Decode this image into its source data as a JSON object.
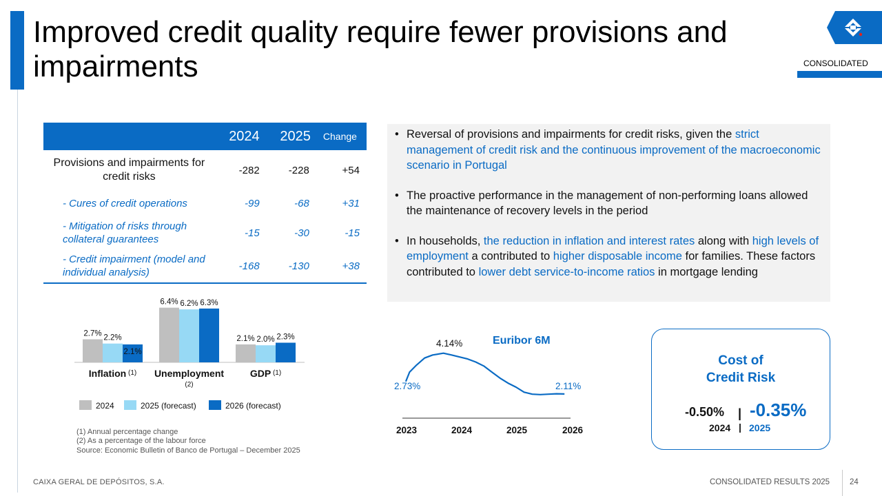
{
  "header": {
    "title": "Improved credit quality require fewer provisions and impairments",
    "consolidated_label": "CONSOLIDATED",
    "logo_icon": "cgd-logo-icon"
  },
  "table": {
    "headers": [
      "",
      "2024",
      "2025",
      "Change"
    ],
    "rows": [
      {
        "label": "Provisions and impairments for credit risks",
        "v2024": "-282",
        "v2025": "-228",
        "change": "+54"
      },
      {
        "label": "- Cures of credit operations",
        "v2024": "-99",
        "v2025": "-68",
        "change": "+31"
      },
      {
        "label": "- Mitigation of risks through collateral guarantees",
        "v2024": "-15",
        "v2025": "-30",
        "change": "-15"
      },
      {
        "label": "- Credit impairment (model and individual analysis)",
        "v2024": "-168",
        "v2025": "-130",
        "change": "+38"
      }
    ]
  },
  "bullets": {
    "b1": {
      "t1": "Reversal of provisions and impairments for credit risks, given the ",
      "h1": "strict management of credit risk and the continuous improvement of the macroeconomic scenario in Portugal"
    },
    "b2": {
      "t1": "The proactive performance in the management of non-performing loans allowed the maintenance of recovery levels in the period"
    },
    "b3": {
      "t1": "In households, ",
      "h1": "the reduction in inflation and interest rates",
      "t2": " along with ",
      "h2": "high levels of employment",
      "t3": " a contributed to ",
      "h3": "higher disposable income",
      "t4": " for families. These factors contributed to ",
      "h4": "lower debt service-to-income ratios",
      "t5": " in mortgage lending"
    }
  },
  "chart_data": [
    {
      "type": "bar",
      "categories": [
        "Inflation",
        "Unemployment",
        "GDP"
      ],
      "category_notes": [
        "(1)",
        "(2)",
        "(1)"
      ],
      "series": [
        {
          "name": "2024",
          "values": [
            2.7,
            6.4,
            2.1
          ],
          "labels": [
            "2.7%",
            "6.4%",
            "2.1%"
          ],
          "color": "#bfbfbf"
        },
        {
          "name": "2025 (forecast)",
          "values": [
            2.2,
            6.2,
            2.0
          ],
          "labels": [
            "2.2%",
            "6.2%",
            "2.0%"
          ],
          "color": "#97d9f5"
        },
        {
          "name": "2026 (forecast)",
          "values": [
            2.1,
            6.3,
            2.3
          ],
          "labels": [
            "2.1%",
            "6.3%",
            "2.3%"
          ],
          "color": "#0a6bc4"
        }
      ],
      "footnotes": [
        "(1) Annual percentage change",
        "(2) As a percentage of the labour force",
        "Source: Economic Bulletin of Banco de Portugal – December 2025"
      ]
    },
    {
      "type": "line",
      "title": "Euribor 6M",
      "x_ticks": [
        "2023",
        "2024",
        "2025",
        "2026"
      ],
      "xlim": [
        2023.0,
        2026.1
      ],
      "ylim": [
        1.9,
        4.3
      ],
      "points": [
        [
          2023.05,
          2.73
        ],
        [
          2023.12,
          3.2
        ],
        [
          2023.25,
          3.55
        ],
        [
          2023.4,
          3.9
        ],
        [
          2023.55,
          4.05
        ],
        [
          2023.75,
          4.14
        ],
        [
          2023.9,
          4.05
        ],
        [
          2024.05,
          3.95
        ],
        [
          2024.2,
          3.85
        ],
        [
          2024.35,
          3.7
        ],
        [
          2024.5,
          3.5
        ],
        [
          2024.65,
          3.2
        ],
        [
          2024.8,
          2.9
        ],
        [
          2024.95,
          2.65
        ],
        [
          2025.1,
          2.45
        ],
        [
          2025.25,
          2.2
        ],
        [
          2025.4,
          2.1
        ],
        [
          2025.55,
          2.08
        ],
        [
          2025.7,
          2.1
        ],
        [
          2025.85,
          2.12
        ],
        [
          2026.0,
          2.11
        ]
      ],
      "labels": {
        "start": "2.73%",
        "peak": "4.14%",
        "end": "2.11%"
      }
    }
  ],
  "cost_of_risk": {
    "title_line1": "Cost of",
    "title_line2": "Credit Risk",
    "v2024": "-0.50%",
    "v2025": "-0.35%",
    "sep": "|",
    "y2024": "2024",
    "y2025": "2025"
  },
  "footer": {
    "left": "CAIXA GERAL DE DEPÓSITOS, S.A.",
    "right": "CONSOLIDATED RESULTS 2025",
    "page": "24"
  }
}
